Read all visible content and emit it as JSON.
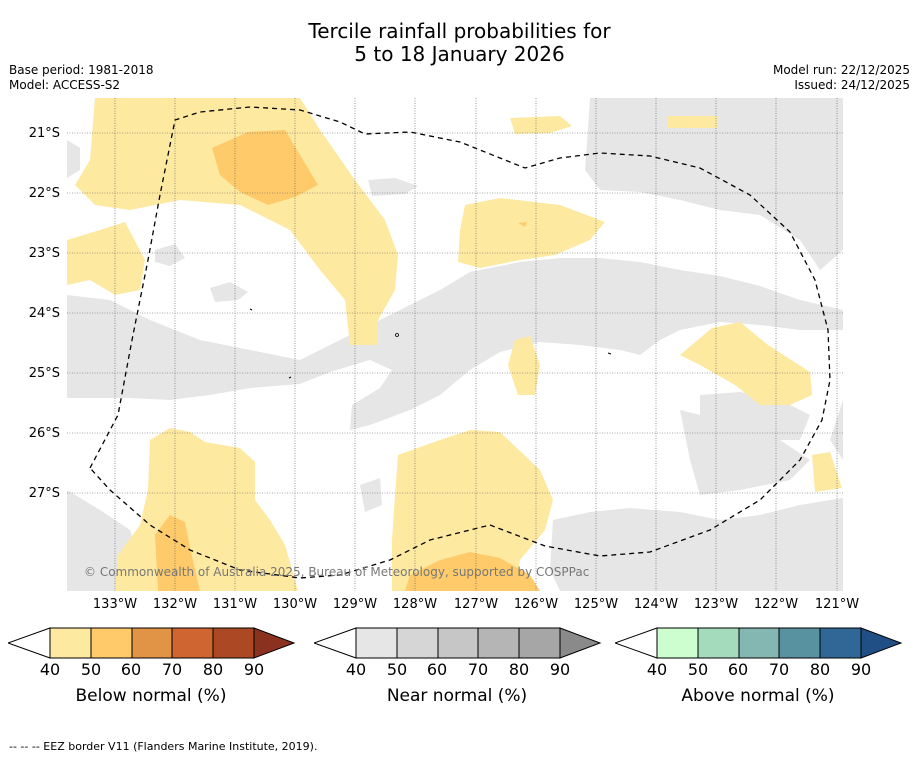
{
  "title": {
    "line1": "Tercile rainfall probabilities for",
    "line2": "5 to 18 January 2026"
  },
  "info_left": {
    "base_period": "Base period: 1981-2018",
    "model": "Model: ACCESS-S2"
  },
  "info_right": {
    "model_run": "Model run: 22/12/2025",
    "issued": "Issued: 24/12/2025"
  },
  "map": {
    "latitude_labels": [
      "21°S",
      "22°S",
      "23°S",
      "24°S",
      "25°S",
      "26°S",
      "27°S"
    ],
    "longitude_labels": [
      "133°W",
      "132°W",
      "131°W",
      "130°W",
      "129°W",
      "128°W",
      "127°W",
      "126°W",
      "125°W",
      "124°W",
      "123°W",
      "122°W",
      "121°W"
    ],
    "copyright": "© Commonwealth of Australia 2025, Bureau of Meteorology, supported by COSPPac",
    "colors": {
      "below_40": "#fee9a1",
      "below_50": "#feca6a",
      "near_40": "#e6e6e6",
      "border_line": "#000000"
    }
  },
  "colorbars": [
    {
      "label": "Below normal (%)",
      "ticks": [
        "40",
        "50",
        "60",
        "70",
        "80",
        "90"
      ],
      "colors": [
        "#fee9a1",
        "#feca6a",
        "#e19446",
        "#cf6531",
        "#ad4824",
        "#8b3120"
      ]
    },
    {
      "label": "Near normal (%)",
      "ticks": [
        "40",
        "50",
        "60",
        "70",
        "80",
        "90"
      ],
      "colors": [
        "#e6e6e6",
        "#d6d6d6",
        "#c6c6c6",
        "#b5b5b5",
        "#a6a6a6",
        "#8a8a8a"
      ]
    },
    {
      "label": "Above normal (%)",
      "ticks": [
        "40",
        "50",
        "60",
        "70",
        "80",
        "90"
      ],
      "colors": [
        "#ccfecf",
        "#a5dbbd",
        "#84b7b2",
        "#5892a0",
        "#316796",
        "#1f4f85"
      ]
    }
  ],
  "footer": "--  --  -- EEZ border V11 (Flanders Marine Institute, 2019)."
}
